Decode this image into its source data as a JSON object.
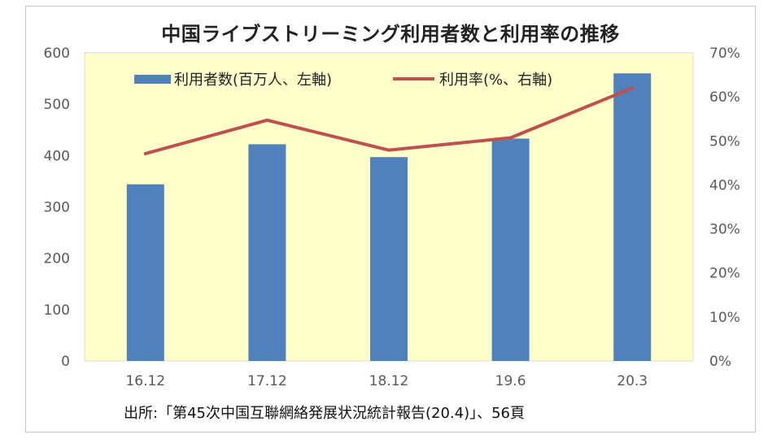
{
  "chart_data": {
    "type": "bar",
    "title": "中国ライブストリーミング利用者数と利用率の推移",
    "categories": [
      "16.12",
      "17.12",
      "18.12",
      "19.6",
      "20.3"
    ],
    "series": [
      {
        "name": "利用者数(百万人、左軸)",
        "kind": "bar",
        "axis": "left",
        "values": [
          344,
          422,
          397,
          433,
          560
        ],
        "color": "#4f81bd"
      },
      {
        "name": "利用率(%、右軸)",
        "kind": "line",
        "axis": "right",
        "values": [
          47.1,
          54.7,
          47.9,
          50.7,
          62.0
        ],
        "color": "#c0504d"
      }
    ],
    "y_left": {
      "ylim": [
        0,
        600
      ],
      "ticks": [
        "0",
        "100",
        "200",
        "300",
        "400",
        "500",
        "600"
      ]
    },
    "y_right": {
      "ylim": [
        0,
        70
      ],
      "ticks": [
        "0%",
        "10%",
        "20%",
        "30%",
        "40%",
        "50%",
        "60%",
        "70%"
      ]
    },
    "legend_position": "top",
    "grid": false,
    "plot_background": "#ffffcc"
  },
  "source_note": "出所:「第45次中国互聯網絡発展状況統計報告(20.4)」、56頁"
}
